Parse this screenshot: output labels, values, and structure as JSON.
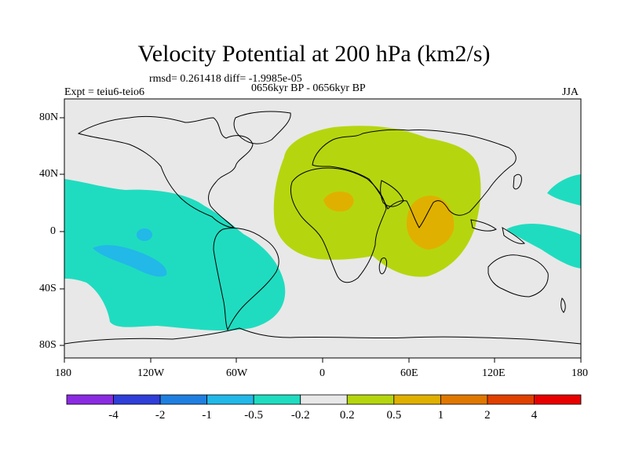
{
  "title": "Velocity Potential at 200 hPa (km2/s)",
  "stats": "rmsd= 0.261418 diff= -1.9985e-05",
  "expt": "Expt = teiu6-teio6",
  "period": "0656kyr BP - 0656kyr BP",
  "season": "JJA",
  "lat_labels": [
    "80N",
    "40N",
    "0",
    "40S",
    "80S"
  ],
  "lon_labels": [
    "180",
    "120W",
    "60W",
    "0",
    "60E",
    "120E",
    "180"
  ],
  "colorbar": {
    "labels": [
      "-4",
      "-2",
      "-1",
      "-0.5",
      "-0.2",
      "0.2",
      "0.5",
      "1",
      "2",
      "4"
    ],
    "colors": [
      "#8a2be2",
      "#2f3fd8",
      "#1f7fe0",
      "#22b8e8",
      "#1fdcc0",
      "#e8e8e8",
      "#b5d60e",
      "#e0b000",
      "#e07800",
      "#e04000",
      "#e80000"
    ]
  },
  "region_colors": {
    "ocean_background": "#e8e8e8",
    "negative_anomaly": "#1fdcc0",
    "strong_negative": "#22b8e8",
    "positive_anomaly": "#b5d60e",
    "strong_positive": "#e0b000"
  }
}
